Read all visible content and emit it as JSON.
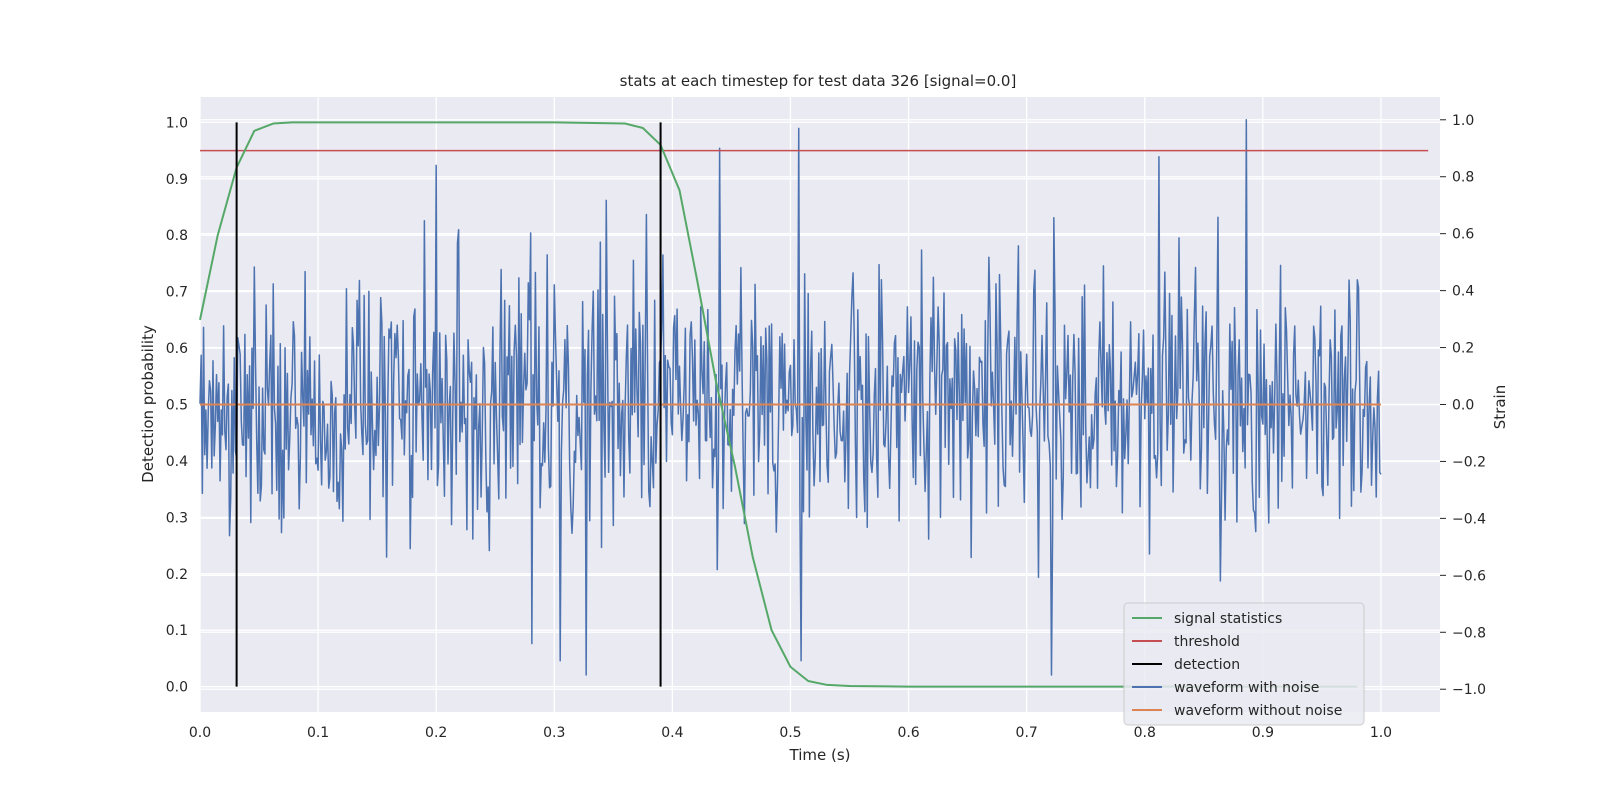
{
  "chart_data": {
    "type": "line",
    "title": "stats at each timestep for test data 326 [signal=0.0]",
    "xlabel": "Time (s)",
    "ylabel": "Detection probability",
    "y2label": "Strain",
    "xlim": [
      0.0,
      1.05
    ],
    "ylim": [
      -0.045,
      1.045
    ],
    "y2lim": [
      -1.08,
      1.08
    ],
    "xticks": [
      "0.0",
      "0.1",
      "0.2",
      "0.3",
      "0.4",
      "0.5",
      "0.6",
      "0.7",
      "0.8",
      "0.9",
      "1.0"
    ],
    "yticks": [
      "0.0",
      "0.1",
      "0.2",
      "0.3",
      "0.4",
      "0.5",
      "0.6",
      "0.7",
      "0.8",
      "0.9",
      "1.0"
    ],
    "y2ticks": [
      "−1.0",
      "−0.8",
      "−0.6",
      "−0.4",
      "−0.2",
      "0.0",
      "0.2",
      "0.4",
      "0.6",
      "0.8",
      "1.0"
    ],
    "grid": true,
    "legend_position": "lower-right",
    "legend": [
      {
        "label": "signal statistics",
        "color": "#55a868"
      },
      {
        "label": "threshold",
        "color": "#c44e52"
      },
      {
        "label": "detection",
        "color": "#000000"
      },
      {
        "label": "waveform with noise",
        "color": "#4c72b0"
      },
      {
        "label": "waveform without noise",
        "color": "#dd8452"
      }
    ],
    "signal_statistics": {
      "axis": "left",
      "x": [
        0.0,
        0.015,
        0.031,
        0.046,
        0.062,
        0.078,
        0.1,
        0.2,
        0.3,
        0.36,
        0.375,
        0.39,
        0.406,
        0.421,
        0.437,
        0.453,
        0.468,
        0.484,
        0.5,
        0.515,
        0.531,
        0.55,
        0.6,
        0.7,
        0.8,
        0.9,
        0.98
      ],
      "y": [
        0.65,
        0.8,
        0.92,
        0.985,
        0.998,
        1.0,
        1.0,
        1.0,
        1.0,
        0.998,
        0.99,
        0.96,
        0.88,
        0.72,
        0.54,
        0.39,
        0.23,
        0.1,
        0.035,
        0.01,
        0.003,
        0.001,
        0.0,
        0.0,
        0.0,
        0.0,
        0.0
      ]
    },
    "threshold": {
      "axis": "left",
      "value": 0.95,
      "x_range": [
        0.0,
        1.04
      ]
    },
    "detections": {
      "axis": "left",
      "x": [
        0.031,
        0.39
      ],
      "y_range": [
        0.0,
        1.0
      ]
    },
    "waveform_with_noise": {
      "axis": "right",
      "dt": 0.001,
      "x_range": [
        0.0,
        1.0
      ],
      "peaks": [
        {
          "x": 0.507,
          "y": 0.97
        },
        {
          "x": 0.509,
          "y": -0.9
        },
        {
          "x": 0.886,
          "y": 1.0
        },
        {
          "x": 0.812,
          "y": 0.87
        },
        {
          "x": 0.44,
          "y": 0.9
        },
        {
          "x": 0.2,
          "y": 0.84
        },
        {
          "x": 0.327,
          "y": -0.95
        },
        {
          "x": 0.721,
          "y": -0.95
        },
        {
          "x": 0.281,
          "y": -0.84
        },
        {
          "x": 0.305,
          "y": -0.9
        }
      ]
    },
    "waveform_without_noise": {
      "axis": "right",
      "x_range": [
        0.0,
        1.0
      ],
      "value": 0.0
    }
  }
}
